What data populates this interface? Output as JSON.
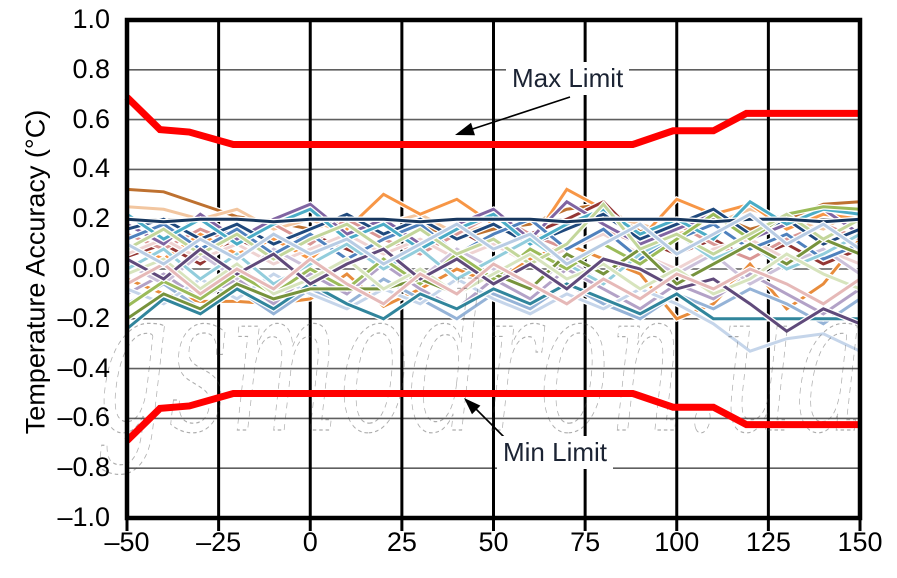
{
  "figure": {
    "background": "#ffffff",
    "watermark_text": "gsmodron.ua"
  },
  "chart_data": {
    "type": "line",
    "title": "",
    "xlabel": "",
    "ylabel": "Temperature Accuracy (°C)",
    "xlim": [
      -50,
      150
    ],
    "ylim": [
      -1.0,
      1.0
    ],
    "grid": {
      "x_step": 25,
      "y_step": 0.2,
      "x_color": "#000000",
      "y_color": "#5f5f5f"
    },
    "legend": "none",
    "xticks": [
      -50,
      -25,
      0,
      25,
      50,
      75,
      100,
      125,
      150
    ],
    "xtick_labels": [
      "–50",
      "–25",
      "0",
      "25",
      "50",
      "75",
      "100",
      "125",
      "150"
    ],
    "yticks": [
      1.0,
      0.8,
      0.6,
      0.4,
      0.2,
      0.0,
      -0.2,
      -0.4,
      -0.6,
      -0.8,
      -1.0
    ],
    "ytick_labels": [
      "1.0",
      "0.8",
      "0.6",
      "0.4",
      "0.2",
      "0.0",
      "–0.2",
      "–0.4",
      "–0.6",
      "–0.8",
      "–1.0"
    ],
    "annotations": [
      {
        "label": "Max Limit"
      },
      {
        "label": "Min Limit"
      }
    ],
    "limit_color": "#ff0000",
    "max_limit": {
      "x": [
        -50,
        -41,
        -33,
        -21,
        88,
        99,
        110,
        119,
        150
      ],
      "values": [
        0.69,
        0.56,
        0.55,
        0.5,
        0.5,
        0.555,
        0.555,
        0.625,
        0.625
      ]
    },
    "min_limit": {
      "x": [
        -50,
        -41,
        -33,
        -21,
        88,
        99,
        110,
        119,
        150
      ],
      "values": [
        -0.69,
        -0.56,
        -0.55,
        -0.5,
        -0.5,
        -0.555,
        -0.555,
        -0.625,
        -0.625
      ]
    },
    "x": [
      -50,
      -40,
      -30,
      -20,
      -10,
      0,
      10,
      20,
      30,
      40,
      50,
      60,
      70,
      80,
      90,
      100,
      110,
      120,
      130,
      140,
      150
    ],
    "series": [
      {
        "color": "#BE7130",
        "values": [
          0.32,
          0.31,
          0.26,
          0.21,
          0.19,
          0.16,
          0.2,
          0.14,
          0.18,
          0.12,
          0.16,
          0.18,
          0.24,
          0.26,
          0.15,
          0.18,
          0.22,
          0.16,
          0.2,
          0.26,
          0.27
        ]
      },
      {
        "color": "#F2C6A0",
        "values": [
          0.25,
          0.24,
          0.2,
          0.24,
          0.16,
          0.2,
          0.14,
          0.18,
          0.22,
          0.14,
          0.18,
          0.12,
          0.16,
          0.22,
          0.18,
          0.14,
          0.18,
          0.24,
          0.2,
          0.16,
          0.25
        ]
      },
      {
        "color": "#F79646",
        "values": [
          0.1,
          0.04,
          0.14,
          0.06,
          0.12,
          0.04,
          0.16,
          0.3,
          0.22,
          0.28,
          0.18,
          0.1,
          0.32,
          0.24,
          0.12,
          0.28,
          0.22,
          0.26,
          0.16,
          0.22,
          0.2
        ]
      },
      {
        "color": "#E88C3C",
        "values": [
          -0.04,
          -0.1,
          -0.13,
          -0.13,
          -0.14,
          -0.12,
          -0.02,
          -0.15,
          -0.08,
          0.0,
          -0.06,
          0.04,
          0.1,
          0.04,
          -0.02,
          -0.2,
          -0.14,
          0.02,
          -0.16,
          -0.06,
          0.12
        ]
      },
      {
        "color": "#943634",
        "values": [
          0.05,
          0.1,
          0.02,
          0.12,
          0.06,
          0.14,
          0.08,
          0.02,
          0.1,
          0.16,
          0.08,
          0.14,
          0.2,
          0.27,
          0.12,
          0.06,
          0.12,
          0.04,
          0.1,
          0.02,
          0.08
        ]
      },
      {
        "color": "#D99694",
        "values": [
          0.14,
          0.08,
          0.16,
          0.1,
          0.18,
          0.1,
          0.2,
          0.12,
          0.06,
          0.14,
          0.22,
          0.14,
          0.08,
          0.16,
          0.1,
          0.18,
          0.1,
          0.04,
          0.12,
          0.18,
          0.12
        ]
      },
      {
        "color": "#EFD3D2",
        "values": [
          0.06,
          0.12,
          0.04,
          0.1,
          0.02,
          0.08,
          0.14,
          0.06,
          0.12,
          0.04,
          0.1,
          0.02,
          0.08,
          0.14,
          0.06,
          0.0,
          0.08,
          0.12,
          0.04,
          0.08,
          0.02
        ]
      },
      {
        "color": "#8064A2",
        "values": [
          0.18,
          0.1,
          0.22,
          0.12,
          0.2,
          0.26,
          0.14,
          0.2,
          0.1,
          0.18,
          0.24,
          0.12,
          0.27,
          0.18,
          0.1,
          0.16,
          0.22,
          0.12,
          0.18,
          0.24,
          0.14
        ]
      },
      {
        "color": "#B3A2C7",
        "values": [
          -0.1,
          -0.02,
          -0.12,
          -0.04,
          -0.14,
          -0.02,
          -0.1,
          0.02,
          -0.08,
          -0.16,
          -0.04,
          -0.12,
          0.0,
          -0.08,
          -0.16,
          -0.06,
          -0.12,
          -0.02,
          -0.1,
          -0.18,
          -0.08
        ]
      },
      {
        "color": "#CCC1DA",
        "values": [
          0.02,
          -0.06,
          0.06,
          -0.04,
          0.08,
          0.0,
          -0.08,
          0.04,
          -0.04,
          0.08,
          0.0,
          -0.08,
          0.04,
          -0.06,
          0.06,
          -0.02,
          0.06,
          -0.06,
          0.02,
          0.08,
          -0.02
        ]
      },
      {
        "color": "#1F497D",
        "values": [
          0.16,
          0.2,
          0.12,
          0.18,
          0.1,
          0.16,
          0.22,
          0.14,
          0.2,
          0.12,
          0.18,
          0.1,
          0.16,
          0.22,
          0.12,
          0.18,
          0.24,
          0.14,
          0.2,
          0.1,
          0.16
        ]
      },
      {
        "color": "#4F81BD",
        "values": [
          0.12,
          0.18,
          0.08,
          0.16,
          0.06,
          0.14,
          0.04,
          0.12,
          0.18,
          0.06,
          0.14,
          0.2,
          0.08,
          0.16,
          0.04,
          0.12,
          0.18,
          0.08,
          0.14,
          0.04,
          0.1
        ]
      },
      {
        "color": "#95B3D7",
        "values": [
          -0.14,
          -0.06,
          -0.16,
          -0.08,
          -0.18,
          -0.08,
          -0.14,
          -0.04,
          -0.12,
          -0.2,
          -0.1,
          -0.16,
          -0.06,
          -0.14,
          -0.2,
          -0.1,
          -0.16,
          -0.08,
          -0.14,
          -0.22,
          -0.12
        ]
      },
      {
        "color": "#C5D5EA",
        "values": [
          -0.08,
          -0.14,
          -0.04,
          -0.12,
          -0.02,
          -0.1,
          -0.16,
          -0.08,
          -0.14,
          -0.04,
          -0.12,
          -0.18,
          -0.1,
          -0.16,
          -0.08,
          -0.14,
          -0.22,
          -0.33,
          -0.28,
          -0.26,
          -0.33
        ]
      },
      {
        "color": "#4BACC6",
        "values": [
          0.22,
          0.12,
          0.2,
          0.1,
          0.18,
          0.24,
          0.12,
          0.18,
          0.08,
          0.16,
          0.22,
          0.1,
          0.18,
          0.24,
          0.14,
          0.2,
          0.12,
          0.27,
          0.18,
          0.24,
          0.22
        ]
      },
      {
        "color": "#92CDDC",
        "values": [
          0.0,
          0.08,
          -0.04,
          0.06,
          -0.06,
          0.02,
          0.1,
          0.0,
          0.08,
          -0.04,
          0.04,
          0.12,
          0.02,
          -0.06,
          0.06,
          0.14,
          0.04,
          0.1,
          0.0,
          0.06,
          0.14
        ]
      },
      {
        "color": "#31859C",
        "values": [
          -0.24,
          -0.12,
          -0.18,
          -0.08,
          -0.16,
          -0.06,
          -0.14,
          -0.2,
          -0.1,
          -0.16,
          -0.08,
          -0.14,
          -0.06,
          -0.12,
          -0.18,
          -0.1,
          -0.2,
          -0.2,
          -0.2,
          -0.2,
          -0.2
        ]
      },
      {
        "color": "#9BBB59",
        "values": [
          -0.15,
          -0.05,
          -0.12,
          -0.02,
          -0.1,
          0.0,
          -0.08,
          0.04,
          -0.06,
          0.06,
          -0.04,
          0.08,
          0.0,
          0.1,
          0.02,
          0.12,
          0.22,
          0.12,
          0.22,
          0.25,
          0.24
        ]
      },
      {
        "color": "#77933C",
        "values": [
          -0.2,
          -0.1,
          -0.16,
          -0.06,
          -0.12,
          -0.08,
          -0.08,
          -0.08,
          -0.04,
          -0.1,
          -0.02,
          -0.08,
          0.06,
          -0.02,
          0.08,
          -0.06,
          0.02,
          0.1,
          0.02,
          0.12,
          0.06
        ]
      },
      {
        "color": "#C3D69B",
        "values": [
          0.08,
          0.16,
          0.06,
          0.14,
          0.04,
          0.12,
          0.18,
          0.08,
          0.16,
          0.06,
          0.12,
          0.02,
          0.1,
          0.26,
          0.08,
          0.14,
          0.06,
          0.14,
          0.22,
          0.12,
          0.2
        ]
      },
      {
        "color": "#D7E4BD",
        "values": [
          -0.02,
          0.04,
          -0.08,
          0.02,
          -0.1,
          -0.04,
          0.04,
          -0.08,
          0.0,
          -0.1,
          -0.02,
          0.06,
          -0.04,
          0.02,
          -0.08,
          0.0,
          -0.1,
          -0.04,
          0.06,
          -0.02,
          -0.08
        ]
      },
      {
        "color": "#604A7B",
        "values": [
          0.04,
          -0.04,
          0.08,
          -0.02,
          0.06,
          -0.06,
          0.02,
          0.08,
          -0.04,
          0.04,
          -0.06,
          0.02,
          -0.08,
          0.04,
          0.0,
          -0.08,
          -0.04,
          -0.14,
          -0.25,
          -0.16,
          -0.22
        ]
      },
      {
        "color": "#E6B9B8",
        "values": [
          -0.06,
          0.02,
          -0.1,
          0.0,
          -0.08,
          0.04,
          -0.06,
          -0.14,
          -0.02,
          -0.1,
          0.02,
          -0.06,
          -0.14,
          -0.04,
          -0.12,
          -0.02,
          -0.08,
          0.0,
          -0.06,
          -0.14,
          -0.04
        ]
      },
      {
        "color": "#17375E",
        "values": [
          0.2,
          0.19,
          0.2,
          0.2,
          0.19,
          0.2,
          0.2,
          0.2,
          0.19,
          0.2,
          0.2,
          0.2,
          0.19,
          0.2,
          0.2,
          0.2,
          0.19,
          0.2,
          0.2,
          0.19,
          0.2
        ]
      },
      {
        "color": "#B8CCE4",
        "values": [
          0.1,
          0.02,
          0.12,
          0.04,
          0.14,
          0.06,
          0.12,
          0.02,
          0.1,
          0.18,
          0.08,
          0.14,
          0.02,
          0.1,
          0.18,
          0.06,
          0.14,
          0.22,
          0.1,
          0.18,
          0.08
        ]
      }
    ]
  }
}
